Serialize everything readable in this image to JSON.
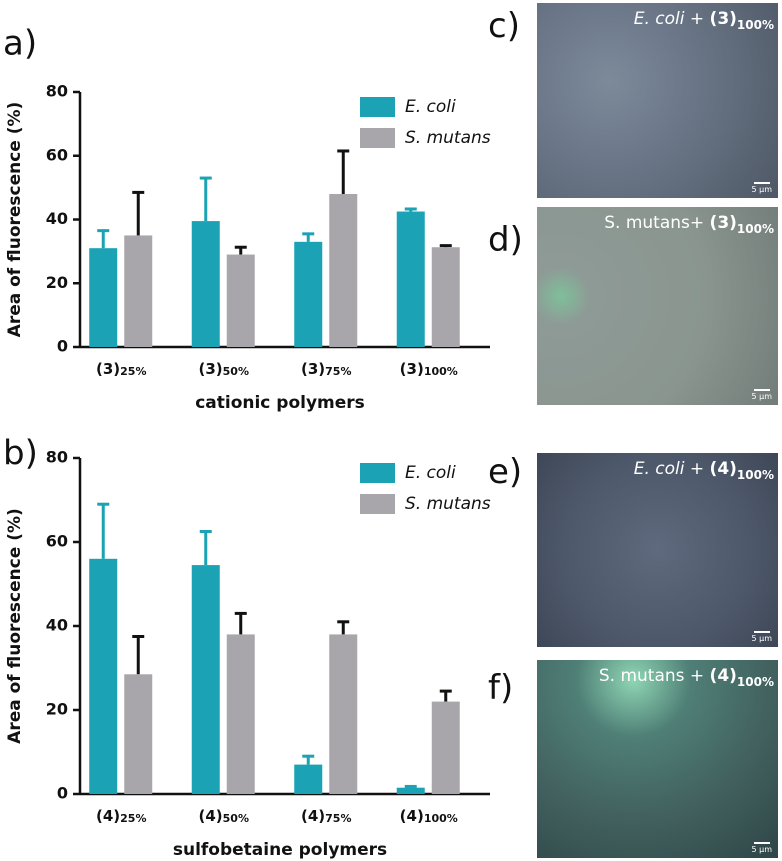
{
  "chart_data": [
    {
      "type": "bar",
      "panel_label": "a)",
      "xlabel": "cationic polymers",
      "ylabel": "Area of fluorescence (%)",
      "categories": [
        "(3)25%",
        "(3)50%",
        "(3)75%",
        "(3)100%"
      ],
      "series": [
        {
          "name": "E. coli",
          "color": "#1ba2b4",
          "values": [
            31,
            39.5,
            33,
            42.5
          ],
          "errors": [
            5.5,
            13.5,
            2.5,
            0.8
          ]
        },
        {
          "name": "S. mutans",
          "color": "#a8a6aa",
          "values": [
            35,
            29,
            48,
            31.3
          ],
          "errors": [
            13.5,
            2.3,
            13.5,
            0.5
          ]
        }
      ],
      "ylim": [
        0,
        80
      ],
      "yticks": [
        0,
        20,
        40,
        60,
        80
      ],
      "legend": "upper right"
    },
    {
      "type": "bar",
      "panel_label": "b)",
      "xlabel": "sulfobetaine polymers",
      "ylabel": "Area of fluorescence (%)",
      "categories": [
        "(4)25%",
        "(4)50%",
        "(4)75%",
        "(4)100%"
      ],
      "series": [
        {
          "name": "E. coli",
          "color": "#1ba2b4",
          "values": [
            56,
            54.5,
            7,
            1.5
          ],
          "errors": [
            13,
            8,
            2,
            0.3
          ]
        },
        {
          "name": "S. mutans",
          "color": "#a8a6aa",
          "values": [
            28.5,
            38,
            38,
            22
          ],
          "errors": [
            9,
            5,
            3,
            2.5
          ]
        }
      ],
      "ylim": [
        0,
        80
      ],
      "yticks": [
        0,
        20,
        40,
        60,
        80
      ],
      "legend": "upper right"
    }
  ],
  "images": [
    {
      "panel_label": "c)",
      "caption": [
        {
          "text": "E. coli",
          "style": "italic"
        },
        {
          "text": " + ",
          "style": "plain"
        },
        {
          "text": "(3)",
          "style": "bold"
        },
        {
          "text": "100%",
          "style": "bold-sub"
        }
      ],
      "scale_bar": "5 µm"
    },
    {
      "panel_label": "d)",
      "caption": [
        {
          "text": "S. mutans+ ",
          "style": "plain"
        },
        {
          "text": "(3)",
          "style": "bold"
        },
        {
          "text": "100%",
          "style": "bold-sub"
        }
      ],
      "scale_bar": "5 µm"
    },
    {
      "panel_label": "e)",
      "caption": [
        {
          "text": "E. coli",
          "style": "italic"
        },
        {
          "text": " + ",
          "style": "plain"
        },
        {
          "text": "(4)",
          "style": "bold"
        },
        {
          "text": "100%",
          "style": "bold-sub"
        }
      ],
      "scale_bar": "5 µm"
    },
    {
      "panel_label": "f)",
      "caption": [
        {
          "text": "S. mutans + ",
          "style": "plain"
        },
        {
          "text": "(4)",
          "style": "bold"
        },
        {
          "text": "100%",
          "style": "bold-sub"
        }
      ],
      "scale_bar": "5 µm"
    }
  ]
}
